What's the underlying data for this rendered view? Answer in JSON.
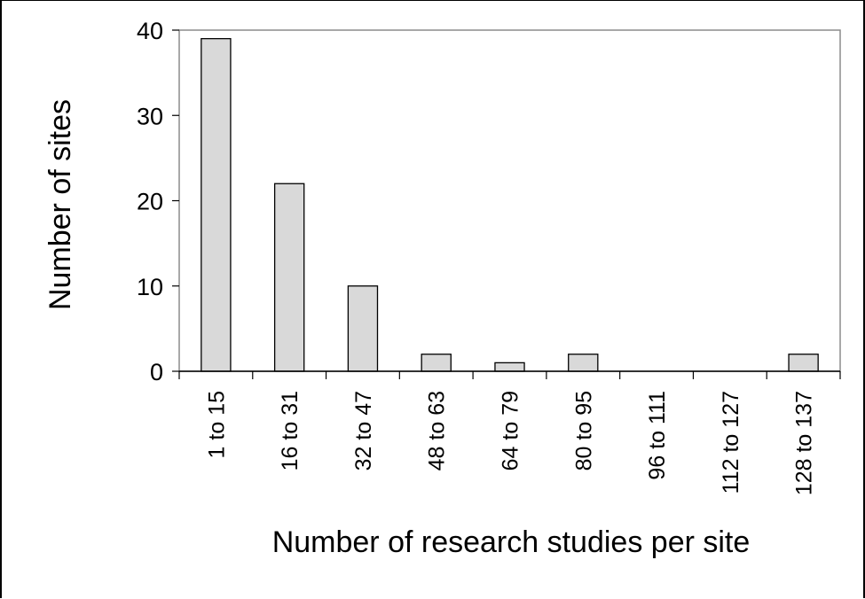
{
  "chart_data": {
    "type": "bar",
    "title": "",
    "xlabel": "Number of research studies per site",
    "ylabel": "Number of sites",
    "categories": [
      "1 to 15",
      "16 to 31",
      "32 to 47",
      "48 to 63",
      "64 to 79",
      "80 to 95",
      "96 to 111",
      "112 to 127",
      "128 to 137"
    ],
    "values": [
      39,
      22,
      10,
      2,
      1,
      2,
      0,
      0,
      2
    ],
    "ylim": [
      0,
      40
    ],
    "yticks": [
      "0",
      "10",
      "20",
      "30",
      "40"
    ],
    "grid": false,
    "legend": "none",
    "bar_color": "#d9d9d9",
    "bar_edge_color": "#000000"
  }
}
